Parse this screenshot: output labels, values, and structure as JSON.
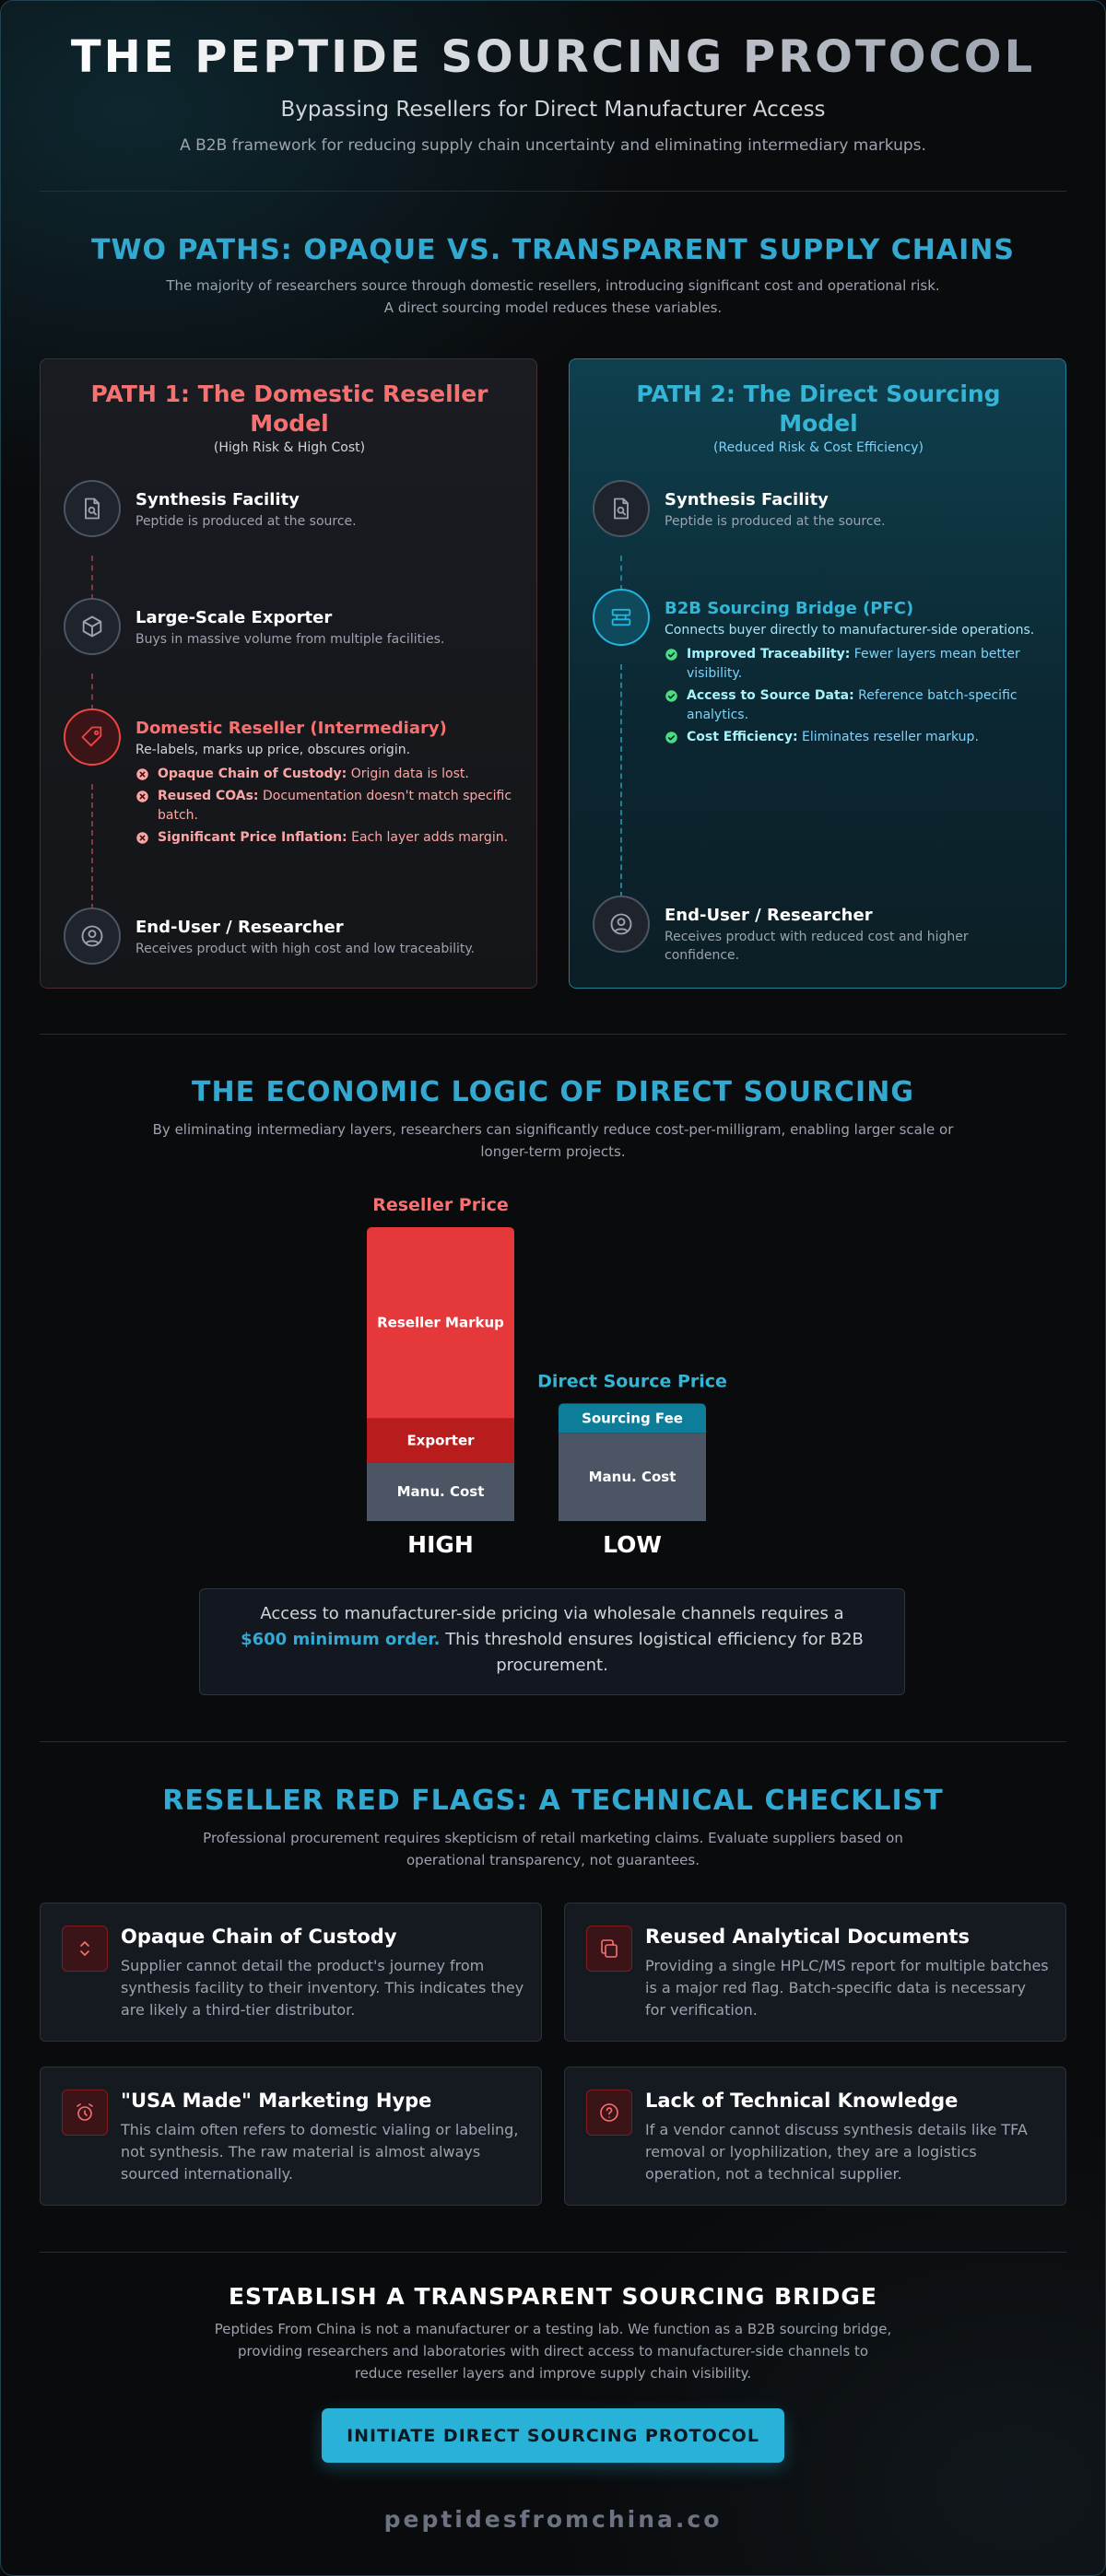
{
  "header": {
    "title": "THE PEPTIDE SOURCING PROTOCOL",
    "subtitle": "Bypassing Resellers for Direct Manufacturer Access",
    "tagline": "A B2B framework for reducing supply chain uncertainty and eliminating intermediary markups."
  },
  "paths": {
    "title": "TWO PATHS: OPAQUE VS. TRANSPARENT SUPPLY CHAINS",
    "intro": [
      "The majority of researchers source through domestic resellers, introducing significant cost and operational risk.",
      "A direct sourcing model reduces these variables."
    ],
    "cards": [
      {
        "title": "PATH 1: The Domestic Reseller Model",
        "subtitle": "(High Risk & High Cost)",
        "steps": [
          {
            "title": "Synthesis Facility",
            "text": "Peptide is produced at the source."
          },
          {
            "title": "Large-Scale Exporter",
            "text": "Buys in massive volume from multiple facilities."
          },
          {
            "title": "Domestic Reseller (Intermediary)",
            "text": "Re-labels, marks up price, obscures origin.",
            "points": [
              {
                "label": "Opaque Chain of Custody:",
                "text": "Origin data is lost."
              },
              {
                "label": "Reused COAs:",
                "text": "Documentation doesn't match specific batch."
              },
              {
                "label": "Significant Price Inflation:",
                "text": "Each layer adds margin."
              }
            ]
          },
          {
            "title": "End-User / Researcher",
            "text": "Receives product with high cost and low traceability."
          }
        ]
      },
      {
        "title": "PATH 2: The Direct Sourcing Model",
        "subtitle": "(Reduced Risk & Cost Efficiency)",
        "steps": [
          {
            "title": "Synthesis Facility",
            "text": "Peptide is produced at the source."
          },
          {
            "title": "B2B Sourcing Bridge (PFC)",
            "text": "Connects buyer directly to manufacturer-side operations.",
            "points": [
              {
                "label": "Improved Traceability:",
                "text": "Fewer layers mean better visibility."
              },
              {
                "label": "Access to Source Data:",
                "text": "Reference batch-specific analytics."
              },
              {
                "label": "Cost Efficiency:",
                "text": "Eliminates reseller markup."
              }
            ]
          },
          {
            "title": "End-User / Researcher",
            "text": "Receives product with reduced cost and higher confidence."
          }
        ]
      }
    ]
  },
  "economics": {
    "title": "THE ECONOMIC LOGIC OF DIRECT SOURCING",
    "intro": "By eliminating intermediary layers, researchers can significantly reduce cost-per-milligram, enabling larger scale or longer-term projects.",
    "chart_data": {
      "type": "stacked_bar",
      "categories": [
        "Reseller Price",
        "Direct Source Price"
      ],
      "category_colors": [
        "#f87171",
        "#33b5d6"
      ],
      "tier_labels": [
        "HIGH",
        "LOW"
      ],
      "series": [
        {
          "name": "Manu. Cost",
          "color": "#4b5563",
          "values": [
            20,
            30
          ]
        },
        {
          "name": "Exporter",
          "color": "#b91c1c",
          "values": [
            15,
            null
          ]
        },
        {
          "name": "Reseller Markup",
          "color": "#e5383b",
          "values": [
            65,
            null
          ]
        },
        {
          "name": "Sourcing Fee",
          "color": "#0e7d9a",
          "values": [
            null,
            10
          ]
        }
      ]
    },
    "note": [
      "Access to manufacturer-side pricing via wholesale channels requires a",
      "$600 minimum order.",
      "This threshold ensures logistical efficiency for B2B procurement."
    ]
  },
  "red_flags": {
    "title": "RESELLER RED FLAGS: A TECHNICAL CHECKLIST",
    "intro": "Professional procurement requires skepticism of retail marketing claims. Evaluate suppliers based on operational transparency, not guarantees.",
    "items": [
      {
        "title": "Opaque Chain of Custody",
        "text": "Supplier cannot detail the product's journey from synthesis facility to their inventory. This indicates they are likely a third-tier distributor."
      },
      {
        "title": "Reused Analytical Documents",
        "text": "Providing a single HPLC/MS report for multiple batches is a major red flag. Batch-specific data is necessary for verification."
      },
      {
        "title": "\"USA Made\" Marketing Hype",
        "text": "This claim often refers to domestic vialing or labeling, not synthesis. The raw material is almost always sourced internationally."
      },
      {
        "title": "Lack of Technical Knowledge",
        "text": "If a vendor cannot discuss synthesis details like TFA removal or lyophilization, they are a logistics operation, not a technical supplier."
      }
    ]
  },
  "cta": {
    "title": "ESTABLISH A TRANSPARENT SOURCING BRIDGE",
    "text": "Peptides From China is not a manufacturer or a testing lab. We function as a B2B sourcing bridge, providing researchers and laboratories with direct access to manufacturer-side channels to reduce reseller layers and improve supply chain visibility.",
    "button": "INITIATE DIRECT SOURCING PROTOCOL"
  },
  "footer": {
    "domain": "peptidesfromchina.co"
  }
}
